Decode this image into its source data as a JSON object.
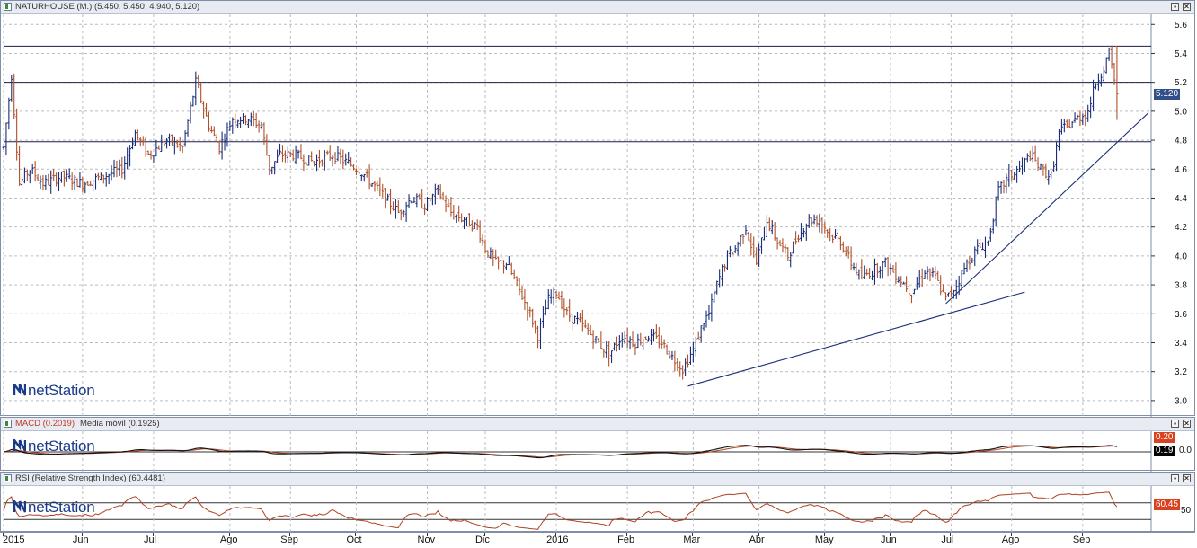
{
  "panels": {
    "price": {
      "title": "NATURHOUSE (M.) (5.450, 5.450, 4.940, 5.120)",
      "last_label": "5.120",
      "ylim": [
        2.9,
        5.67
      ],
      "yticks": [
        3.0,
        3.2,
        3.4,
        3.6,
        3.8,
        4.0,
        4.2,
        4.4,
        4.6,
        4.8,
        5.0,
        5.2,
        5.4,
        5.6
      ],
      "ytick_labels": [
        "3.0",
        "3.2",
        "3.4",
        "3.6",
        "3.8",
        "4.0",
        "4.2",
        "4.4",
        "4.6",
        "4.8",
        "5.0",
        "5.2",
        "5.4",
        "5.6"
      ],
      "hlines": [
        5.45,
        5.2,
        4.79
      ],
      "trendlines": [
        {
          "from": {
            "x": 260,
            "y": 3.1
          },
          "to": {
            "x": 388,
            "y": 3.75
          }
        },
        {
          "from": {
            "x": 358,
            "y": 3.67
          },
          "to": {
            "x": 435,
            "y": 4.99
          }
        }
      ]
    },
    "macd": {
      "title_main": "MACD (0.2019)",
      "title_ma": "Media móvil (0.1925)",
      "tag_top": "0.20",
      "tag_bottom": "0.19",
      "zero_label": "0.0"
    },
    "rsi": {
      "title": "RSI (Relative Strength Index) (60.4481)",
      "tag": "60.45",
      "level_label": "50"
    }
  },
  "logo_text": "netStation",
  "x_axis": {
    "labels": [
      "2015",
      "Jun",
      "Jul",
      "Ago",
      "Sep",
      "Oct",
      "Nov",
      "Dic",
      "2016",
      "Feb",
      "Mar",
      "Abr",
      "May",
      "Jun",
      "Jul",
      "Ago",
      "Sep"
    ]
  },
  "chart_data": {
    "type": "bar",
    "title": "NATURHOUSE (M.) (5.450, 5.450, 4.940, 5.120)",
    "series_name": "NATURHOUSE",
    "x_range": [
      0,
      436
    ],
    "anchors": [
      [
        0,
        4.75
      ],
      [
        3,
        5.25
      ],
      [
        6,
        4.5
      ],
      [
        10,
        4.6
      ],
      [
        15,
        4.5
      ],
      [
        22,
        4.55
      ],
      [
        30,
        4.5
      ],
      [
        38,
        4.55
      ],
      [
        45,
        4.6
      ],
      [
        50,
        4.85
      ],
      [
        55,
        4.7
      ],
      [
        62,
        4.8
      ],
      [
        68,
        4.75
      ],
      [
        73,
        5.2
      ],
      [
        78,
        4.9
      ],
      [
        82,
        4.75
      ],
      [
        87,
        4.95
      ],
      [
        93,
        4.95
      ],
      [
        98,
        4.9
      ],
      [
        101,
        4.6
      ],
      [
        105,
        4.7
      ],
      [
        110,
        4.7
      ],
      [
        118,
        4.65
      ],
      [
        125,
        4.7
      ],
      [
        130,
        4.65
      ],
      [
        135,
        4.6
      ],
      [
        140,
        4.5
      ],
      [
        145,
        4.4
      ],
      [
        150,
        4.3
      ],
      [
        155,
        4.4
      ],
      [
        160,
        4.35
      ],
      [
        165,
        4.45
      ],
      [
        170,
        4.3
      ],
      [
        175,
        4.25
      ],
      [
        180,
        4.2
      ],
      [
        183,
        4.05
      ],
      [
        187,
        3.95
      ],
      [
        191,
        3.95
      ],
      [
        195,
        3.8
      ],
      [
        200,
        3.6
      ],
      [
        203,
        3.45
      ],
      [
        207,
        3.7
      ],
      [
        210,
        3.75
      ],
      [
        214,
        3.6
      ],
      [
        218,
        3.55
      ],
      [
        222,
        3.48
      ],
      [
        226,
        3.4
      ],
      [
        230,
        3.32
      ],
      [
        235,
        3.45
      ],
      [
        240,
        3.4
      ],
      [
        245,
        3.45
      ],
      [
        250,
        3.4
      ],
      [
        254,
        3.3
      ],
      [
        258,
        3.22
      ],
      [
        262,
        3.35
      ],
      [
        266,
        3.55
      ],
      [
        268,
        3.6
      ],
      [
        271,
        3.8
      ],
      [
        275,
        4.0
      ],
      [
        278,
        4.05
      ],
      [
        282,
        4.2
      ],
      [
        286,
        3.95
      ],
      [
        290,
        4.25
      ],
      [
        294,
        4.1
      ],
      [
        298,
        4.0
      ],
      [
        302,
        4.15
      ],
      [
        306,
        4.25
      ],
      [
        310,
        4.25
      ],
      [
        314,
        4.15
      ],
      [
        318,
        4.1
      ],
      [
        322,
        3.95
      ],
      [
        326,
        3.85
      ],
      [
        330,
        3.9
      ],
      [
        335,
        3.95
      ],
      [
        340,
        3.85
      ],
      [
        345,
        3.75
      ],
      [
        350,
        3.9
      ],
      [
        354,
        3.85
      ],
      [
        358,
        3.7
      ],
      [
        362,
        3.8
      ],
      [
        366,
        3.95
      ],
      [
        370,
        4.05
      ],
      [
        374,
        4.1
      ],
      [
        378,
        4.45
      ],
      [
        382,
        4.55
      ],
      [
        386,
        4.6
      ],
      [
        390,
        4.7
      ],
      [
        394,
        4.6
      ],
      [
        398,
        4.55
      ],
      [
        401,
        4.85
      ],
      [
        404,
        4.9
      ],
      [
        408,
        4.95
      ],
      [
        412,
        5.0
      ],
      [
        415,
        5.2
      ],
      [
        418,
        5.3
      ],
      [
        420,
        5.4
      ],
      [
        423,
        5.12
      ]
    ],
    "last_bar": {
      "open": 5.45,
      "high": 5.45,
      "low": 4.94,
      "close": 5.12
    },
    "macd": {
      "value": 0.2019,
      "signal": 0.1925
    },
    "rsi": {
      "value": 60.4481,
      "levels": [
        70,
        30
      ]
    },
    "colors": {
      "up": "#1a2e78",
      "down": "#b0502a",
      "hline": "#1a1f4a",
      "trend": "#1a2e78",
      "macd_line": "#111111",
      "signal_line": "#b04020",
      "rsi_line": "#b04020",
      "grid": "#bcbcbc",
      "tag_bg": "#334f8a",
      "tag_red": "#d9421e"
    }
  }
}
